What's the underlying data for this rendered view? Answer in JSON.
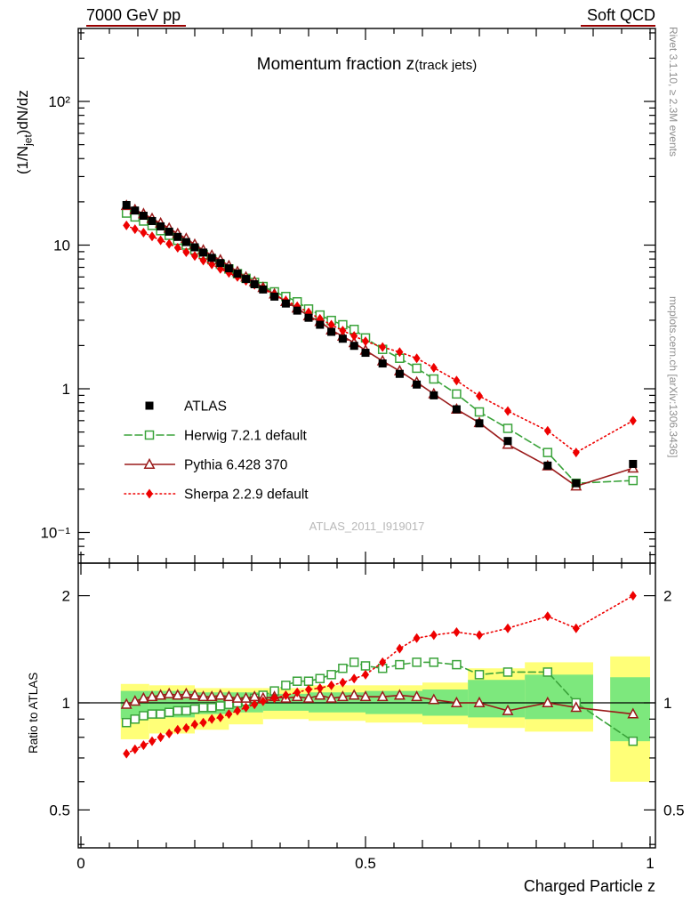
{
  "header": {
    "left": "7000 GeV pp",
    "right": "Soft QCD"
  },
  "side_notes": {
    "top": "Rivet 3.1.10, ≥ 2.3M events",
    "bottom": "mcplots.cern.ch [arXiv:1306.3436]"
  },
  "watermark": "ATLAS_2011_I919017",
  "xlabel": "Charged Particle z",
  "main_plot": {
    "title": "Momentum fraction z",
    "title_small": "(track jets)",
    "ylabel": {
      "prefix": "(1/N",
      "sub": "jet",
      "suffix": ")dN/dz"
    },
    "yticks": [
      {
        "v": 0.1,
        "label": "10⁻¹"
      },
      {
        "v": 1,
        "label": "1"
      },
      {
        "v": 10,
        "label": "10"
      },
      {
        "v": 100,
        "label": "10²"
      }
    ],
    "xticks": [
      {
        "v": 0,
        "label": "0"
      },
      {
        "v": 0.5,
        "label": "0.5"
      },
      {
        "v": 1,
        "label": "1"
      }
    ]
  },
  "ratio_plot": {
    "ylabel": "Ratio to ATLAS",
    "yticks": [
      {
        "v": 0.5,
        "label": "0.5"
      },
      {
        "v": 1,
        "label": "1"
      },
      {
        "v": 2,
        "label": "2"
      }
    ],
    "minor_yticks": [
      0.4,
      0.6,
      0.7,
      0.8,
      0.9
    ]
  },
  "palette": {
    "frame": "#000000",
    "accent_underline": "#990000",
    "band_green": "#7de87d",
    "band_yellow": "#ffff78",
    "watermark": "#b8b8b8",
    "side_note": "#8f8f8f"
  },
  "chart_data": {
    "type": "line",
    "title": "Momentum fraction z (track jets)",
    "xlabel": "Charged Particle z",
    "ylabel": "(1/Njet)dN/dz",
    "x_range": [
      0,
      1
    ],
    "main_axis": {
      "scale": "log",
      "ylim": [
        0.06,
        320
      ]
    },
    "ratio_axis": {
      "scale": "log",
      "ylim": [
        0.39,
        2.5
      ],
      "reference": 1
    },
    "x": [
      0.08,
      0.095,
      0.11,
      0.125,
      0.14,
      0.155,
      0.17,
      0.185,
      0.2,
      0.215,
      0.23,
      0.245,
      0.26,
      0.275,
      0.29,
      0.305,
      0.32,
      0.34,
      0.36,
      0.38,
      0.4,
      0.42,
      0.44,
      0.46,
      0.48,
      0.5,
      0.53,
      0.56,
      0.59,
      0.62,
      0.66,
      0.7,
      0.75,
      0.82,
      0.87,
      0.97
    ],
    "series": [
      {
        "name": "ATLAS",
        "color": "#000000",
        "marker": "square-filled",
        "line": "none",
        "values": [
          19.0,
          17.4,
          16.0,
          14.7,
          13.5,
          12.4,
          11.4,
          10.5,
          9.65,
          8.87,
          8.15,
          7.5,
          6.89,
          6.33,
          5.81,
          5.34,
          4.91,
          4.38,
          3.92,
          3.5,
          3.12,
          2.79,
          2.49,
          2.23,
          1.99,
          1.78,
          1.5,
          1.27,
          1.07,
          0.9,
          0.72,
          0.575,
          0.433,
          0.292,
          0.22,
          0.3
        ]
      },
      {
        "name": "Herwig 7.2.1 default",
        "color": "#3aa33a",
        "marker": "square-open",
        "line": "dashed",
        "values": [
          16.7,
          15.7,
          14.7,
          13.7,
          12.6,
          11.7,
          10.8,
          10.0,
          9.26,
          8.6,
          7.91,
          7.35,
          6.82,
          6.33,
          5.87,
          5.5,
          5.15,
          4.73,
          4.39,
          4.03,
          3.59,
          3.26,
          2.99,
          2.79,
          2.59,
          2.26,
          1.88,
          1.63,
          1.39,
          1.17,
          0.92,
          0.69,
          0.53,
          0.36,
          0.22,
          0.23
        ],
        "ratio": [
          0.88,
          0.9,
          0.92,
          0.93,
          0.93,
          0.94,
          0.95,
          0.95,
          0.96,
          0.97,
          0.97,
          0.98,
          0.99,
          1.0,
          1.01,
          1.03,
          1.05,
          1.08,
          1.12,
          1.15,
          1.15,
          1.17,
          1.2,
          1.25,
          1.3,
          1.27,
          1.25,
          1.28,
          1.3,
          1.3,
          1.28,
          1.2,
          1.22,
          1.22,
          1.0,
          0.78
        ]
      },
      {
        "name": "Pythia 6.428 370",
        "color": "#9a1a1a",
        "marker": "triangle-open",
        "line": "solid",
        "values": [
          18.8,
          17.6,
          16.5,
          15.3,
          14.2,
          13.1,
          12.0,
          11.1,
          10.1,
          9.22,
          8.48,
          7.88,
          7.17,
          6.52,
          5.98,
          5.55,
          5.06,
          4.56,
          4.04,
          3.64,
          3.21,
          2.93,
          2.56,
          2.32,
          2.09,
          1.85,
          1.56,
          1.33,
          1.11,
          0.92,
          0.72,
          0.58,
          0.41,
          0.29,
          0.21,
          0.28
        ],
        "ratio": [
          0.99,
          1.01,
          1.03,
          1.04,
          1.05,
          1.06,
          1.05,
          1.06,
          1.05,
          1.04,
          1.04,
          1.05,
          1.04,
          1.03,
          1.03,
          1.04,
          1.03,
          1.04,
          1.03,
          1.04,
          1.03,
          1.05,
          1.03,
          1.04,
          1.05,
          1.04,
          1.04,
          1.05,
          1.04,
          1.02,
          1.0,
          1.0,
          0.95,
          1.0,
          0.97,
          0.93
        ]
      },
      {
        "name": "Sherpa 2.2.9 default",
        "color": "#ee0000",
        "marker": "diamond-filled",
        "line": "dotted",
        "values": [
          13.7,
          12.9,
          12.2,
          11.5,
          10.8,
          10.2,
          9.58,
          8.93,
          8.4,
          7.81,
          7.34,
          6.83,
          6.41,
          6.01,
          5.64,
          5.29,
          4.96,
          4.51,
          4.12,
          3.75,
          3.4,
          3.07,
          2.79,
          2.54,
          2.33,
          2.14,
          1.95,
          1.8,
          1.63,
          1.4,
          1.14,
          0.89,
          0.7,
          0.51,
          0.36,
          0.6
        ],
        "ratio": [
          0.72,
          0.74,
          0.76,
          0.78,
          0.8,
          0.82,
          0.84,
          0.85,
          0.87,
          0.88,
          0.9,
          0.91,
          0.93,
          0.95,
          0.97,
          0.99,
          1.01,
          1.03,
          1.05,
          1.07,
          1.09,
          1.1,
          1.12,
          1.14,
          1.17,
          1.2,
          1.3,
          1.42,
          1.52,
          1.55,
          1.58,
          1.55,
          1.62,
          1.75,
          1.62,
          2.0
        ]
      }
    ],
    "bands": [
      {
        "x0": 0.07,
        "x1": 0.12,
        "yellow": [
          0.79,
          1.13
        ],
        "green": [
          0.9,
          1.08
        ]
      },
      {
        "x0": 0.12,
        "x1": 0.2,
        "yellow": [
          0.82,
          1.12
        ],
        "green": [
          0.91,
          1.08
        ]
      },
      {
        "x0": 0.2,
        "x1": 0.26,
        "yellow": [
          0.84,
          1.1
        ],
        "green": [
          0.93,
          1.07
        ]
      },
      {
        "x0": 0.26,
        "x1": 0.32,
        "yellow": [
          0.87,
          1.1
        ],
        "green": [
          0.94,
          1.07
        ]
      },
      {
        "x0": 0.32,
        "x1": 0.4,
        "yellow": [
          0.9,
          1.1
        ],
        "green": [
          0.95,
          1.06
        ]
      },
      {
        "x0": 0.4,
        "x1": 0.5,
        "yellow": [
          0.89,
          1.12
        ],
        "green": [
          0.94,
          1.07
        ]
      },
      {
        "x0": 0.5,
        "x1": 0.6,
        "yellow": [
          0.88,
          1.12
        ],
        "green": [
          0.93,
          1.08
        ]
      },
      {
        "x0": 0.6,
        "x1": 0.68,
        "yellow": [
          0.87,
          1.14
        ],
        "green": [
          0.92,
          1.09
        ]
      },
      {
        "x0": 0.68,
        "x1": 0.78,
        "yellow": [
          0.85,
          1.25
        ],
        "green": [
          0.91,
          1.16
        ]
      },
      {
        "x0": 0.78,
        "x1": 0.9,
        "yellow": [
          0.83,
          1.3
        ],
        "green": [
          0.9,
          1.2
        ]
      },
      {
        "x0": 0.93,
        "x1": 1.0,
        "yellow": [
          0.6,
          1.35
        ],
        "green": [
          0.78,
          1.18
        ]
      }
    ]
  }
}
